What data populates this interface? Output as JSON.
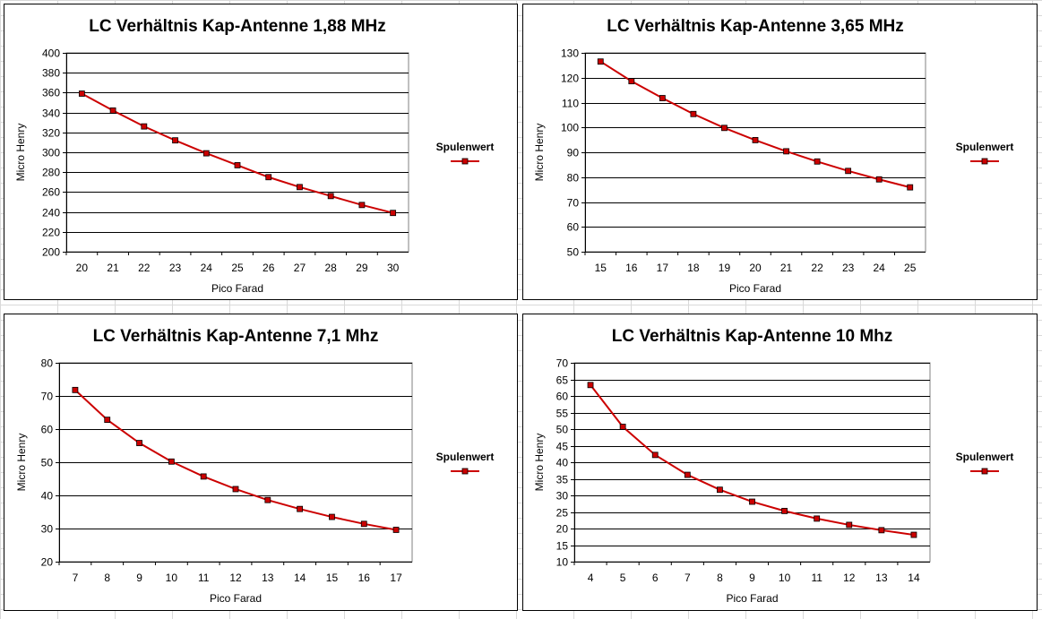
{
  "chart_data": [
    {
      "type": "line",
      "title": "LC Verhältnis Kap-Antenne 1,88 MHz",
      "xlabel": "Pico Farad",
      "ylabel": "Micro Henry",
      "legend": "Spulenwert",
      "legend_position": "right",
      "grid": true,
      "ylim": [
        200,
        400
      ],
      "ystep": 20,
      "x": [
        20,
        21,
        22,
        23,
        24,
        25,
        26,
        27,
        28,
        29,
        30
      ],
      "series": [
        {
          "name": "Spulenwert",
          "color": "#cc0000",
          "values": [
            359,
            342,
            326,
            312,
            299,
            287,
            275,
            265,
            256,
            247,
            239
          ]
        }
      ]
    },
    {
      "type": "line",
      "title": "LC Verhältnis Kap-Antenne 3,65 MHz",
      "xlabel": "Pico Farad",
      "ylabel": "Micro Henry",
      "legend": "Spulenwert",
      "legend_position": "right",
      "grid": true,
      "ylim": [
        50,
        130
      ],
      "ystep": 10,
      "x": [
        15,
        16,
        17,
        18,
        19,
        20,
        21,
        22,
        23,
        24,
        25
      ],
      "series": [
        {
          "name": "Spulenwert",
          "color": "#cc0000",
          "values": [
            126.5,
            118.6,
            111.8,
            105.4,
            99.8,
            94.9,
            90.4,
            86.3,
            82.5,
            79.1,
            75.9
          ]
        }
      ]
    },
    {
      "type": "line",
      "title": "LC Verhältnis Kap-Antenne 7,1 Mhz",
      "xlabel": "Pico Farad",
      "ylabel": "Micro Henry",
      "legend": "Spulenwert",
      "legend_position": "right",
      "grid": true,
      "ylim": [
        20,
        80
      ],
      "ystep": 10,
      "x": [
        7,
        8,
        9,
        10,
        11,
        12,
        13,
        14,
        15,
        16,
        17
      ],
      "series": [
        {
          "name": "Spulenwert",
          "color": "#cc0000",
          "values": [
            71.8,
            62.8,
            55.8,
            50.2,
            45.7,
            41.9,
            38.6,
            35.9,
            33.5,
            31.4,
            29.6
          ]
        }
      ]
    },
    {
      "type": "line",
      "title": "LC Verhältnis Kap-Antenne 10 Mhz",
      "xlabel": "Pico Farad",
      "ylabel": "Micro Henry",
      "legend": "Spulenwert",
      "legend_position": "right",
      "grid": true,
      "ylim": [
        10,
        70
      ],
      "ystep": 5,
      "x": [
        4,
        5,
        6,
        7,
        8,
        9,
        10,
        11,
        12,
        13,
        14
      ],
      "series": [
        {
          "name": "Spulenwert",
          "color": "#cc0000",
          "values": [
            63.3,
            50.7,
            42.2,
            36.2,
            31.7,
            28.1,
            25.3,
            23.0,
            21.1,
            19.5,
            18.1
          ]
        }
      ]
    }
  ]
}
